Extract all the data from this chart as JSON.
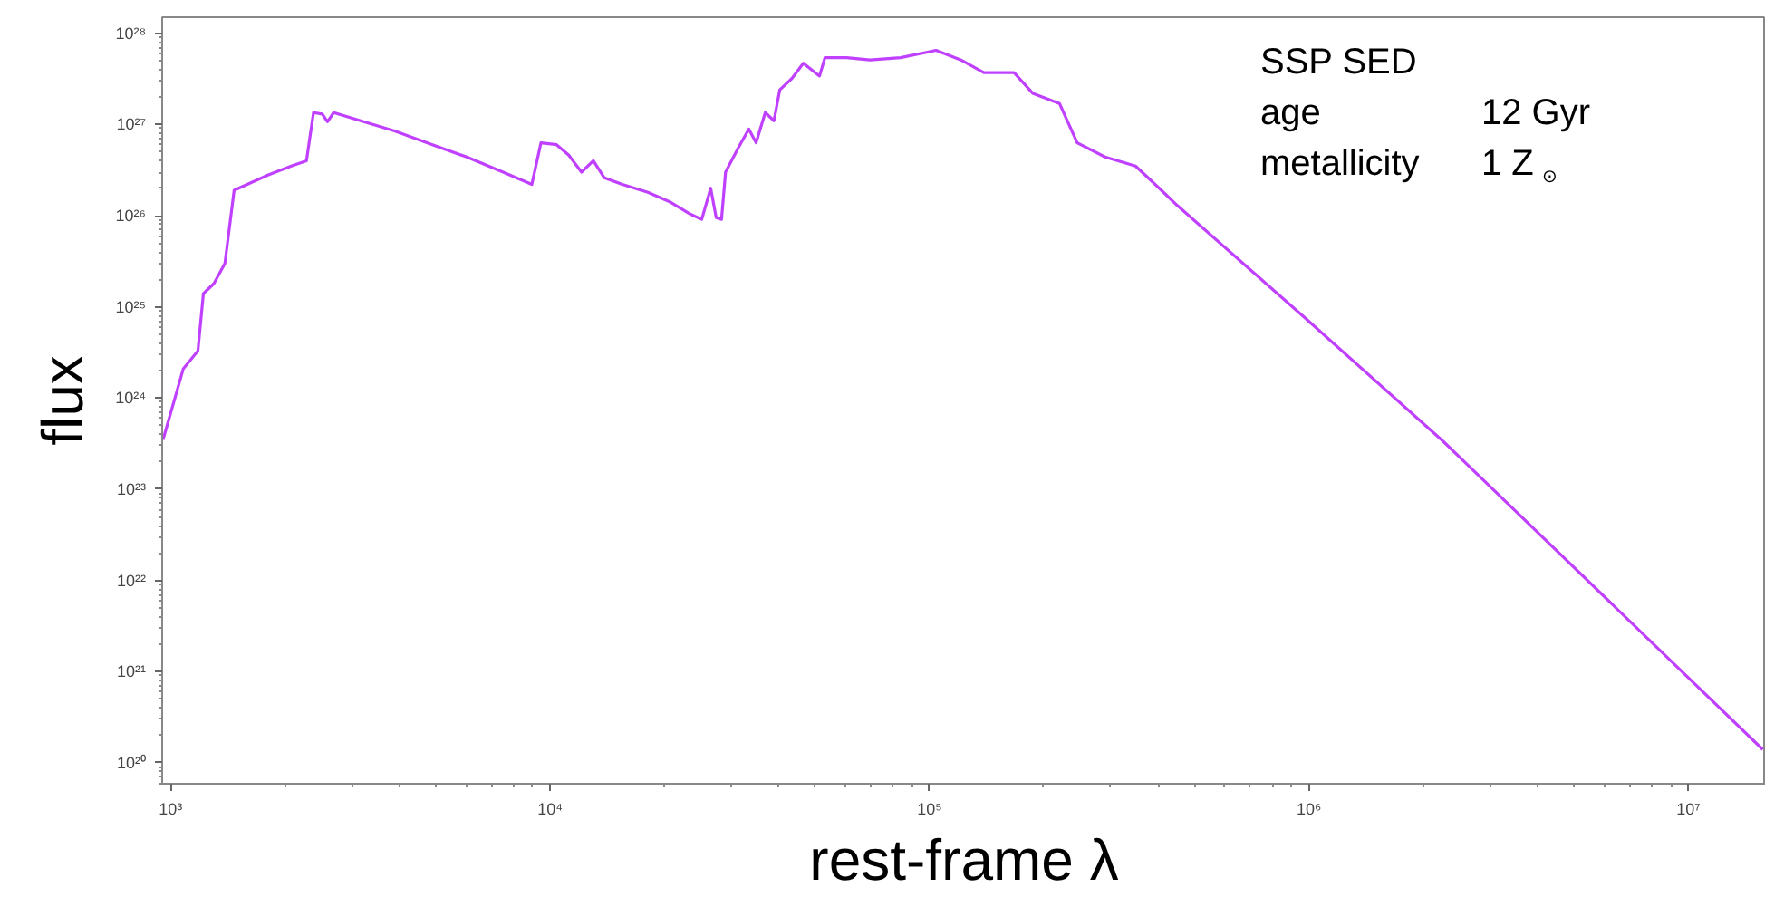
{
  "chart_data": {
    "type": "line",
    "xlabel": "rest-frame λ",
    "ylabel": "flux",
    "log": "xy",
    "grid": false,
    "marker": "none",
    "line_style": "solid",
    "annotations": [
      "SSP SED",
      "age\t12 Gyr",
      "metallicity\t1 Z$_{⊙}$"
    ],
    "xlim": [
      950,
      16000000
    ],
    "ylim": [
      5.9e+19,
      1.5e+28
    ],
    "xticks": [
      {
        "value": 1000,
        "label": "10³"
      },
      {
        "value": 10000,
        "label": "10⁴"
      },
      {
        "value": 100000,
        "label": "10⁵"
      },
      {
        "value": 1000000,
        "label": "10⁶"
      },
      {
        "value": 10000000,
        "label": "10⁷"
      }
    ],
    "yticks": [
      {
        "value": 1e+20,
        "label": "10²⁰"
      },
      {
        "value": 1e+21,
        "label": "10²¹"
      },
      {
        "value": 1e+22,
        "label": "10²²"
      },
      {
        "value": 1e+23,
        "label": "10²³"
      },
      {
        "value": 1e+24,
        "label": "10²⁴"
      },
      {
        "value": 1e+25,
        "label": "10²⁵"
      },
      {
        "value": 1e+26,
        "label": "10²⁶"
      },
      {
        "value": 1e+27,
        "label": "10²⁷"
      },
      {
        "value": 1e+28,
        "label": "10²⁸"
      }
    ],
    "x": [
      955,
      1080,
      1180,
      1220,
      1300,
      1390,
      1470,
      1810,
      2080,
      2280,
      2380,
      2510,
      2590,
      2690,
      3240,
      3890,
      5010,
      6030,
      7520,
      8950,
      9460,
      10400,
      11200,
      12100,
      13000,
      13900,
      15500,
      18100,
      20800,
      23300,
      25100,
      26500,
      27400,
      28300,
      29000,
      31300,
      33400,
      34900,
      36900,
      38900,
      40300,
      43400,
      46500,
      51300,
      53000,
      60400,
      69700,
      83900,
      104000,
      121000,
      139000,
      167000,
      187000,
      220000,
      245000,
      290000,
      349000,
      403000,
      449000,
      968000,
      2250000,
      15700000
    ],
    "series": [
      {
        "color": "#c040ff",
        "values": [
          3.5e+23,
          2.1e+24,
          3.3e+24,
          1.4e+25,
          1.8e+25,
          3e+25,
          1.9e+26,
          2.8e+26,
          3.5e+26,
          4e+26,
          1.35e+27,
          1.3e+27,
          1.07e+27,
          1.35e+27,
          1.07e+27,
          8.5e+26,
          5.8e+26,
          4.4e+26,
          3e+26,
          2.2e+26,
          6.3e+26,
          6e+26,
          4.6e+26,
          3e+26,
          4e+26,
          2.6e+26,
          2.2e+26,
          1.8e+26,
          1.4e+26,
          1.05e+26,
          9.1e+25,
          2e+26,
          9.5e+25,
          9.1e+25,
          3e+26,
          5.5e+26,
          8.9e+26,
          6.3e+26,
          1.35e+27,
          1.1e+27,
          2.4e+27,
          3.2e+27,
          4.7e+27,
          3.4e+27,
          5.4e+27,
          5.4e+27,
          5.1e+27,
          5.4e+27,
          6.5e+27,
          5.1e+27,
          3.7e+27,
          3.7e+27,
          2.2e+27,
          1.7e+27,
          6.3e+26,
          4.4e+26,
          3.5e+26,
          2e+26,
          1.3e+26,
          7.8e+24,
          3.4e+23,
          1.4e+20
        ]
      }
    ]
  }
}
